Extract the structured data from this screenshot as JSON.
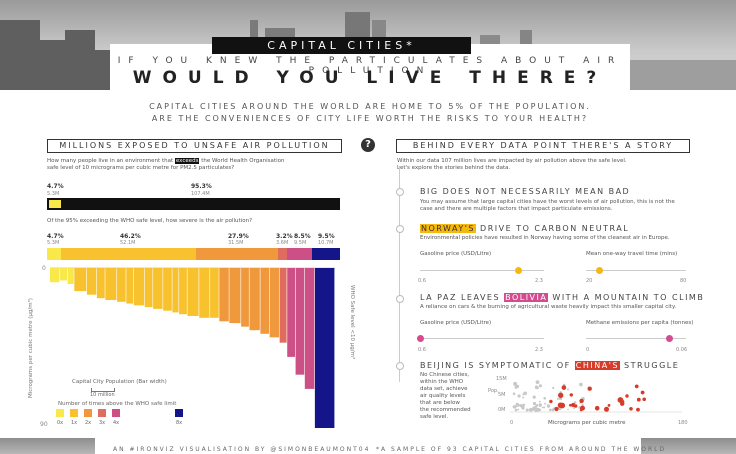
{
  "header": {
    "title": "CAPITAL CITIES*",
    "subtitle": "IF YOU KNEW THE PARTICULATES ABOUT AIR POLLUTION",
    "headline": "WOULD YOU LIVE THERE?",
    "intro_line1": "CAPITAL CITIES AROUND THE WORLD ARE HOME TO 5% OF THE POPULATION.",
    "intro_line2": "ARE THE CONVENIENCES OF CITY LIFE WORTH THE RISKS TO YOUR HEALTH?",
    "help": "?"
  },
  "left": {
    "heading": "MILLIONS EXPOSED TO UNSAFE AIR POLLUTION",
    "q1_pre": "How many people live in an environment that",
    "q1_hl": "exceeds",
    "q1_post": "the World Health Organisation",
    "q1_line2": "safe level of 10 micrograms per cubic metre for PM2.5 particulates?",
    "bar1": [
      {
        "pct": "4.7%",
        "count": "5.3M",
        "value": 4.7,
        "color": "#111111"
      },
      {
        "pct": "95.3%",
        "count": "107.4M",
        "value": 95.3,
        "color": "#1a1a1a"
      }
    ],
    "q2": "Of the 95% exceeding the WHO safe level, how severe is the air pollution?",
    "bar2": [
      {
        "pct": "4.7%",
        "count": "5.3M",
        "value": 4.7,
        "color": "#f9e84a"
      },
      {
        "pct": "46.2%",
        "count": "52.1M",
        "value": 46.2,
        "color": "#f8c12e"
      },
      {
        "pct": "27.9%",
        "count": "31.5M",
        "value": 27.9,
        "color": "#f0983c"
      },
      {
        "pct": "3.2%",
        "count": "3.6M",
        "value": 3.2,
        "color": "#e06c5f"
      },
      {
        "pct": "8.5%",
        "count": "9.5M",
        "value": 8.5,
        "color": "#cc4f86"
      },
      {
        "pct": "9.5%",
        "count": "10.7M",
        "value": 9.5,
        "color": "#15158a"
      }
    ],
    "y_axis_label": "Micrograms per cubic metre (μg/m³)",
    "right_axis_label": "WHO Safe level <10 μg/m³",
    "y_zero": "0",
    "y_90": "90",
    "width_legend_title": "Capital City Population (Bar width)",
    "width_legend_value": "10 million",
    "color_legend_title": "Number of times above the WHO safe limit",
    "color_legend": [
      {
        "label": "0x",
        "color": "#f9e84a"
      },
      {
        "label": "1x",
        "color": "#f8c12e"
      },
      {
        "label": "2x",
        "color": "#f0983c"
      },
      {
        "label": "3x",
        "color": "#e06c5f"
      },
      {
        "label": "4x",
        "color": "#cc4f86"
      },
      {
        "label": "8x",
        "color": "#15158a"
      }
    ],
    "chart_data": {
      "type": "bar",
      "xlabel": "",
      "ylabel": "Micrograms per cubic metre (μg/m³)",
      "ylim": [
        0,
        90
      ],
      "segments": [
        {
          "group": "0x",
          "color": "#f9e84a",
          "bars": [
            [
              1.2,
              8
            ],
            [
              0.9,
              7
            ],
            [
              0.8,
              9
            ]
          ]
        },
        {
          "group": "1x",
          "color": "#f8c12e",
          "bars": [
            [
              1.5,
              13
            ],
            [
              1.2,
              15
            ],
            [
              1.0,
              17
            ],
            [
              1.4,
              18
            ],
            [
              1.1,
              19
            ],
            [
              0.9,
              20
            ],
            [
              1.3,
              21
            ],
            [
              1.0,
              22
            ],
            [
              1.2,
              23
            ],
            [
              1.1,
              24
            ],
            [
              0.8,
              25
            ],
            [
              1.0,
              26
            ],
            [
              1.4,
              27
            ],
            [
              1.3,
              28
            ],
            [
              1.1,
              28
            ]
          ]
        },
        {
          "group": "2x",
          "color": "#f0983c",
          "bars": [
            [
              1.2,
              30
            ],
            [
              1.4,
              31
            ],
            [
              1.0,
              33
            ],
            [
              1.3,
              35
            ],
            [
              1.1,
              37
            ],
            [
              1.2,
              39
            ]
          ]
        },
        {
          "group": "3x",
          "color": "#e06c5f",
          "bars": [
            [
              0.9,
              42
            ]
          ]
        },
        {
          "group": "4x",
          "color": "#cc4f86",
          "bars": [
            [
              1.0,
              50
            ],
            [
              1.1,
              60
            ],
            [
              1.2,
              68
            ]
          ]
        },
        {
          "group": "8x",
          "color": "#15158a",
          "bars": [
            [
              2.4,
              90
            ]
          ]
        }
      ]
    }
  },
  "right": {
    "heading": "BEHIND EVERY DATA POINT THERE'S A STORY",
    "intro1": "Within our data 107 million lives are impacted by air pollution above the safe level.",
    "intro2": "Let's explore the stories behind the data.",
    "s1_title": "BIG DOES NOT NECESSARILY MEAN BAD",
    "s1_text1": "You may assume that large capital cities have the worst levels of air pollution, this is not the",
    "s1_text2": "case and there are multiple factors that impact particulate emissions.",
    "s2_hl": "NORWAY'S",
    "s2_rest": " DRIVE TO CARBON NEUTRAL",
    "s2_text": "Environmental policies have resulted in Norway having some of the cleanest air in Europe.",
    "s2_m1": "Gasoline price (USD/Litre)",
    "s2_m1_min": "0.6",
    "s2_m1_max": "2.3",
    "s2_m1_value": 1.95,
    "s2_m2": "Mean one-way travel time (mins)",
    "s2_m2_min": "20",
    "s2_m2_max": "80",
    "s2_m2_value": 28,
    "s3_pre": "LA PAZ LEAVES ",
    "s3_hl": "BOLIVIA",
    "s3_post": " WITH A MOUNTAIN TO CLIMB",
    "s3_text": "A reliance on cars & the burning of agricultural waste heavily impact this smaller capital city.",
    "s3_m1": "Gasoline price (USD/Litre)",
    "s3_m1_min": "0.6",
    "s3_m1_max": "2.3",
    "s3_m1_value": 0.6,
    "s3_m2": "Methane emissions per capita (tonnes)",
    "s3_m2_min": "0",
    "s3_m2_max": "0.06",
    "s3_m2_value": 0.05,
    "s4_pre": "BEIJING IS SYMPTOMATIC OF ",
    "s4_hl": "CHINA'S",
    "s4_post": " STRUGGLE",
    "s4_text": [
      "No Chinese cities,",
      "within the WHO",
      "data set, achieve",
      "air quality levels",
      "that are below",
      "the recommended",
      "safe level."
    ],
    "scatter_ylabel": "Pop.",
    "scatter_y_top": "15M",
    "scatter_y_mid": "5M",
    "scatter_y_zero": "0M",
    "scatter_x0": "0",
    "scatter_x1": "180",
    "scatter_xlabel": "Micrograms per cubic metre"
  },
  "footer": {
    "credit": "AN #IRONVIZ VISUALISATION BY @SIMONBEAUMONT04",
    "note": "*A SAMPLE OF 93 CAPITAL CITIES FROM AROUND THE WORLD"
  }
}
